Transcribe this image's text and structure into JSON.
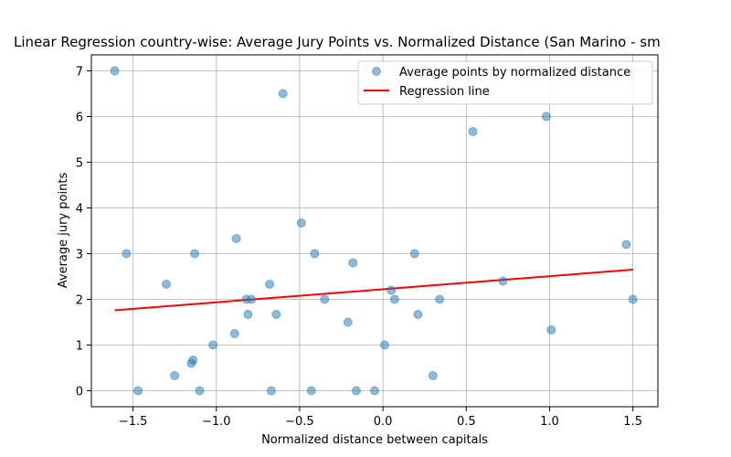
{
  "chart_data": {
    "type": "scatter",
    "title": "Linear Regression country-wise: Average Jury Points vs. Normalized Distance (San Marino - sm",
    "xlabel": "Normalized distance between capitals",
    "ylabel": "Average jury points",
    "xlim": [
      -1.75,
      1.65
    ],
    "ylim": [
      -0.35,
      7.35
    ],
    "x_ticks": [
      -1.5,
      -1.0,
      -0.5,
      0.0,
      0.5,
      1.0,
      1.5
    ],
    "x_tick_labels": [
      "−1.5",
      "−1.0",
      "−0.5",
      "0.0",
      "0.5",
      "1.0",
      "1.5"
    ],
    "y_ticks": [
      0,
      1,
      2,
      3,
      4,
      5,
      6,
      7
    ],
    "y_tick_labels": [
      "0",
      "1",
      "2",
      "3",
      "4",
      "5",
      "6",
      "7"
    ],
    "grid": true,
    "legend_position": "top-right",
    "point_color": "#1f77b4",
    "line_color": "#ff0000",
    "series": [
      {
        "name": "Average points by normalized distance",
        "kind": "scatter",
        "points": [
          [
            -1.61,
            7.0
          ],
          [
            -1.54,
            3.0
          ],
          [
            -1.47,
            0.0
          ],
          [
            -1.3,
            2.33
          ],
          [
            -1.25,
            0.33
          ],
          [
            -1.15,
            0.6
          ],
          [
            -1.14,
            0.67
          ],
          [
            -1.13,
            3.0
          ],
          [
            -1.1,
            0.0
          ],
          [
            -1.02,
            1.0
          ],
          [
            -0.89,
            1.25
          ],
          [
            -0.88,
            3.33
          ],
          [
            -0.82,
            2.0
          ],
          [
            -0.81,
            1.67
          ],
          [
            -0.79,
            2.0
          ],
          [
            -0.68,
            2.33
          ],
          [
            -0.67,
            0.0
          ],
          [
            -0.64,
            1.67
          ],
          [
            -0.6,
            6.5
          ],
          [
            -0.49,
            3.67
          ],
          [
            -0.43,
            0.0
          ],
          [
            -0.41,
            3.0
          ],
          [
            -0.35,
            2.0
          ],
          [
            -0.21,
            1.5
          ],
          [
            -0.18,
            2.8
          ],
          [
            -0.16,
            0.0
          ],
          [
            -0.05,
            0.0
          ],
          [
            0.01,
            1.0
          ],
          [
            0.05,
            2.2
          ],
          [
            0.07,
            2.0
          ],
          [
            0.19,
            3.0
          ],
          [
            0.21,
            1.67
          ],
          [
            0.3,
            0.33
          ],
          [
            0.34,
            2.0
          ],
          [
            0.54,
            5.67
          ],
          [
            0.72,
            2.4
          ],
          [
            0.98,
            6.0
          ],
          [
            1.01,
            1.33
          ],
          [
            1.46,
            3.2
          ],
          [
            1.5,
            2.0
          ]
        ]
      },
      {
        "name": "Regression line",
        "kind": "line",
        "points": [
          [
            -1.61,
            1.76
          ],
          [
            1.5,
            2.65
          ]
        ]
      }
    ]
  }
}
